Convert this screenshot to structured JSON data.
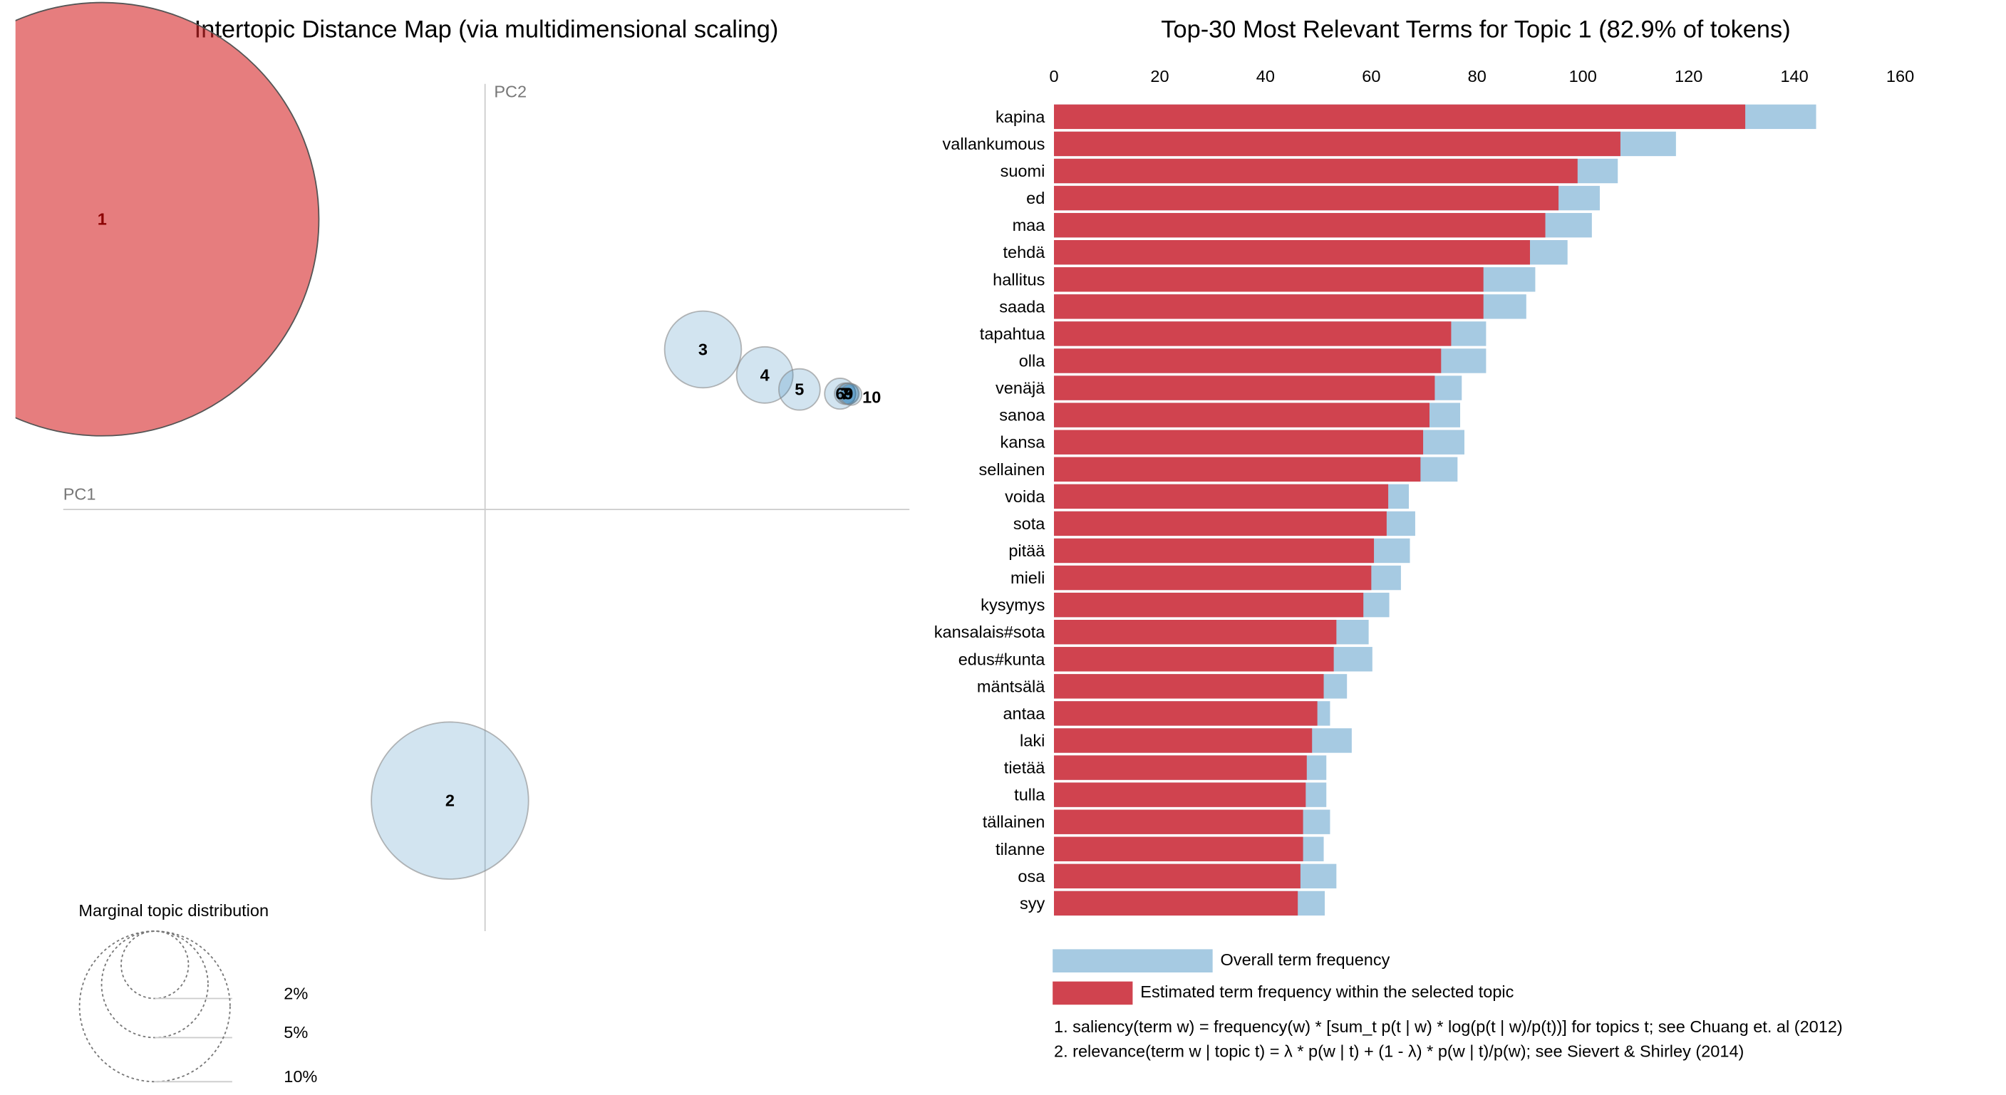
{
  "chart_data": [
    {
      "type": "bubble",
      "title": "Intertopic Distance Map (via multidimensional scaling)",
      "x_label": "PC1",
      "y_label": "PC2",
      "categories": [
        "1",
        "2",
        "3",
        "4",
        "5",
        "6",
        "7",
        "8",
        "9",
        "10"
      ],
      "x": [
        -0.454,
        -0.043,
        0.256,
        0.329,
        0.37,
        0.418,
        0.424,
        0.427,
        0.428,
        0.431
      ],
      "y": [
        0.341,
        -0.342,
        0.188,
        0.158,
        0.141,
        0.136,
        0.136,
        0.136,
        0.136,
        0.135
      ],
      "sizes": [
        82.9,
        10.9,
        2.6,
        1.4,
        0.75,
        0.42,
        0.2,
        0.2,
        0.2,
        0.2
      ],
      "colors": [
        "#d62728",
        "#1f77b4",
        "#1f77b4",
        "#1f77b4",
        "#1f77b4",
        "#1f77b4",
        "#1f77b4",
        "#1f77b4",
        "#1f77b4",
        "#1f77b4"
      ],
      "xlim": [
        -0.5,
        0.5
      ],
      "ylim": [
        -0.5,
        0.5
      ],
      "size_legend": {
        "title": "Marginal topic distribution",
        "values": [
          {
            "value": 2,
            "label": "2%"
          },
          {
            "value": 5,
            "label": "5%"
          },
          {
            "value": 10,
            "label": "10%"
          }
        ]
      }
    },
    {
      "type": "bar",
      "orientation": "horizontal",
      "title": "Top-30 Most Relevant Terms for Topic 1 (82.9% of tokens)",
      "categories": [
        "kapina",
        "vallankumous",
        "suomi",
        "ed",
        "maa",
        "tehdä",
        "hallitus",
        "saada",
        "tapahtua",
        "olla",
        "venäjä",
        "sanoa",
        "kansa",
        "sellainen",
        "voida",
        "sota",
        "pitää",
        "mieli",
        "kysymys",
        "kansalais#sota",
        "edus#kunta",
        "mäntsälä",
        "antaa",
        "laki",
        "tietää",
        "tulla",
        "tällainen",
        "tilanne",
        "osa",
        "syy"
      ],
      "series": [
        {
          "name": "Overall term frequency",
          "color": "#a6cae2",
          "values": [
            144.1,
            117.6,
            106.6,
            103.2,
            101.7,
            97.1,
            91.0,
            89.3,
            81.7,
            81.7,
            77.1,
            76.8,
            77.6,
            76.3,
            67.1,
            68.3,
            67.3,
            65.6,
            63.4,
            59.5,
            60.2,
            55.4,
            52.2,
            56.3,
            51.5,
            51.5,
            52.2,
            51.0,
            53.4,
            51.2
          ]
        },
        {
          "name": "Estimated term frequency within the selected topic",
          "color": "#d0434f",
          "values": [
            130.7,
            107.1,
            99.0,
            95.4,
            92.9,
            90.0,
            81.2,
            81.2,
            75.1,
            73.2,
            72.0,
            71.0,
            69.8,
            69.3,
            63.2,
            62.9,
            60.5,
            60.0,
            58.5,
            53.4,
            52.9,
            51.0,
            49.8,
            48.8,
            47.8,
            47.6,
            47.1,
            47.1,
            46.6,
            46.1
          ]
        }
      ],
      "xlim": [
        0,
        160
      ],
      "xticks": [
        0,
        20,
        40,
        60,
        80,
        100,
        120,
        140,
        160
      ],
      "notes": [
        "1. saliency(term w) = frequency(w) * [sum_t p(t | w) * log(p(t | w)/p(t))] for topics t; see Chuang et. al (2012)",
        "2. relevance(term w | topic t) = λ * p(w | t) + (1 - λ) * p(w | t)/p(w); see Sievert & Shirley (2014)"
      ]
    }
  ]
}
